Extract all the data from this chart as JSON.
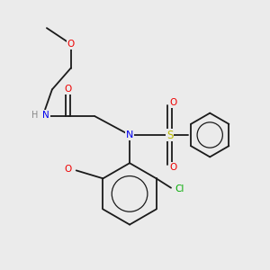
{
  "background_color": "#ebebeb",
  "bond_color": "#1a1a1a",
  "atom_colors": {
    "N": "#0000ee",
    "O": "#ee0000",
    "S": "#bbbb00",
    "Cl": "#00aa00",
    "H": "#888888",
    "C": "#1a1a1a"
  },
  "figsize": [
    3.0,
    3.0
  ],
  "dpi": 100
}
